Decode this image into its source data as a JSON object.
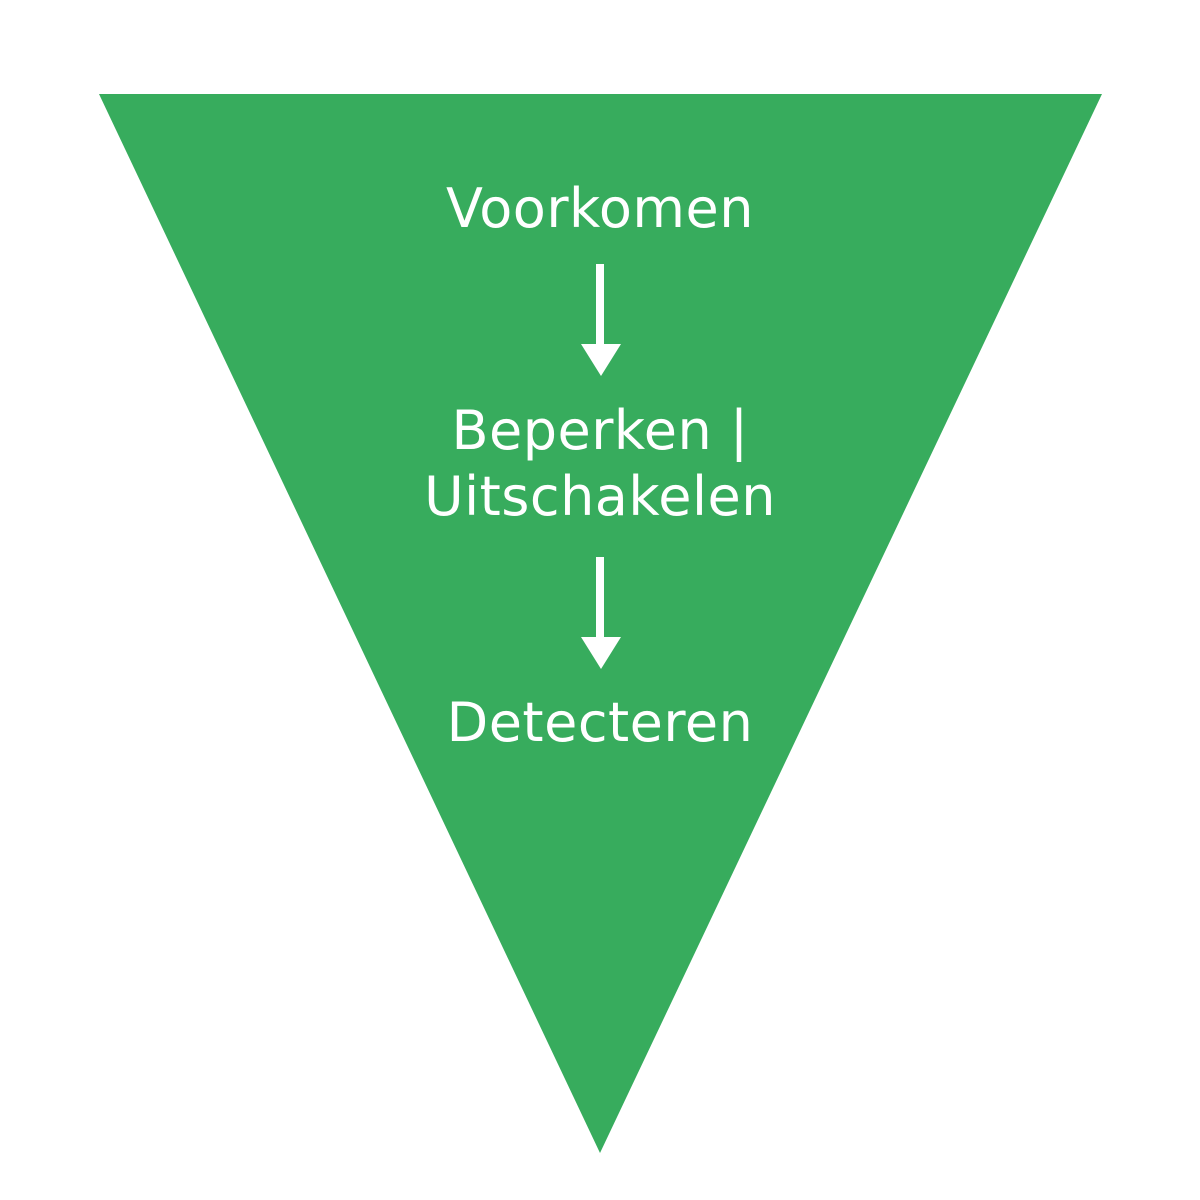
{
  "diagram": {
    "shape": "inverted-triangle",
    "fill_color": "#37ac5d",
    "text_color": "#ffffff",
    "arrow_color": "#ffffff",
    "steps": [
      {
        "lines": [
          "Voorkomen"
        ]
      },
      {
        "lines": [
          "Beperken |",
          "Uitschakelen"
        ]
      },
      {
        "lines": [
          "Detecteren"
        ]
      }
    ]
  }
}
